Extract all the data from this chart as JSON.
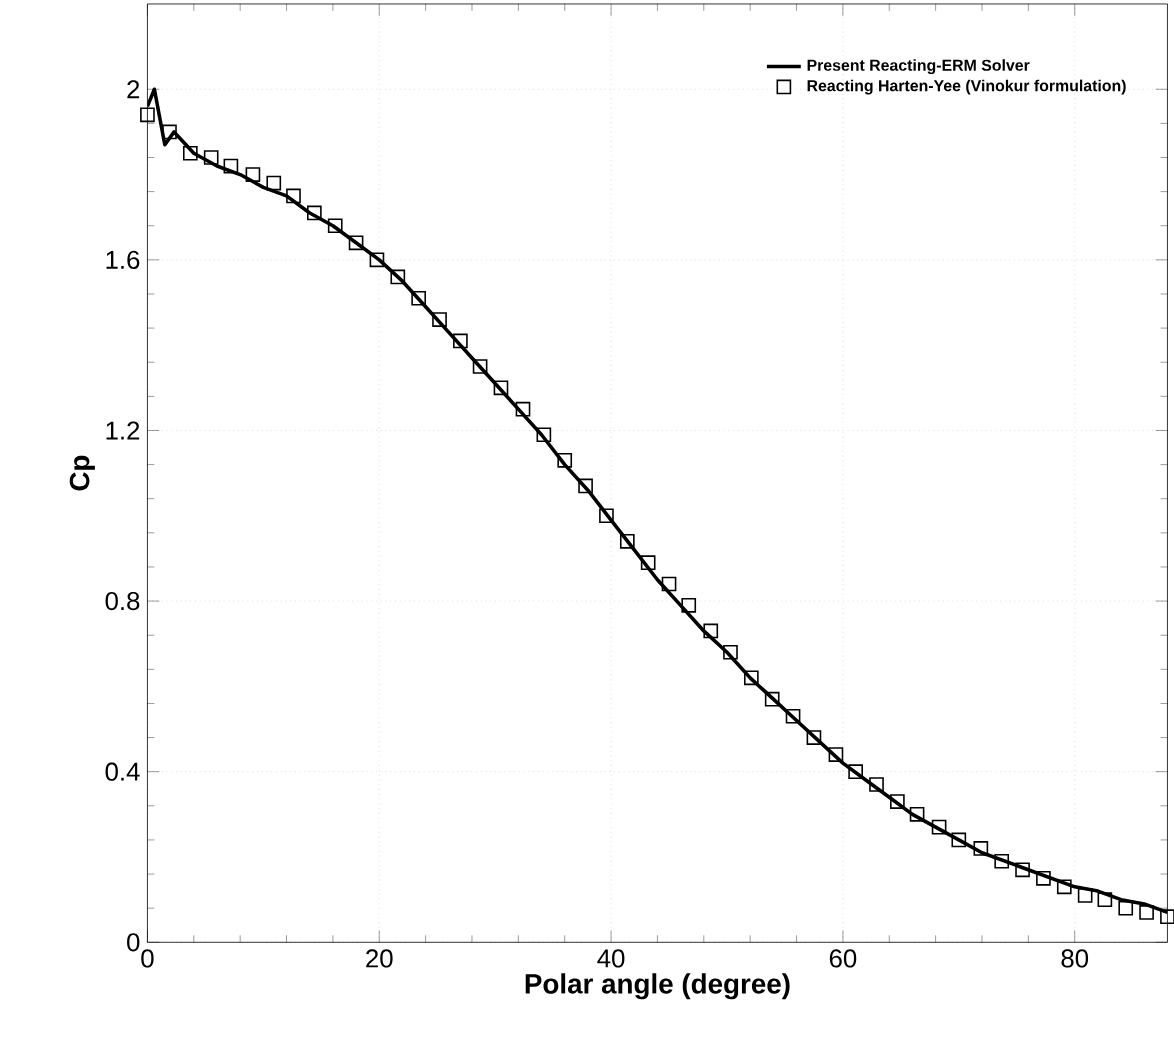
{
  "chart_data": {
    "type": "line",
    "xlabel": "Polar angle (degree)",
    "ylabel": "Cp",
    "xlim": [
      0,
      88
    ],
    "ylim": [
      0,
      2.2
    ],
    "xticks": [
      0,
      20,
      40,
      60,
      80
    ],
    "yticks": [
      0,
      0.4,
      0.8,
      1.2,
      1.6,
      2
    ],
    "grid": true,
    "legend": "top right",
    "series": [
      {
        "name": "Present Reacting-ERM Solver",
        "type": "line",
        "marker": "none",
        "line_style": "solid",
        "color": "#000000",
        "x": [
          0,
          0.6,
          1.5,
          2.3,
          4,
          6,
          8,
          10,
          12,
          14,
          16,
          18,
          20,
          22,
          24,
          26,
          28,
          30,
          32,
          34,
          36,
          38,
          40,
          42,
          44,
          46,
          48,
          50,
          52,
          54,
          56,
          58,
          60,
          62,
          64,
          66,
          68,
          70,
          72,
          74,
          76,
          78,
          80,
          82,
          84,
          86,
          88
        ],
        "values": [
          1.96,
          2.0,
          1.87,
          1.9,
          1.85,
          1.82,
          1.8,
          1.77,
          1.75,
          1.71,
          1.68,
          1.64,
          1.6,
          1.55,
          1.49,
          1.43,
          1.37,
          1.31,
          1.25,
          1.19,
          1.12,
          1.06,
          0.99,
          0.92,
          0.85,
          0.79,
          0.73,
          0.68,
          0.62,
          0.57,
          0.52,
          0.47,
          0.42,
          0.38,
          0.34,
          0.3,
          0.27,
          0.24,
          0.21,
          0.19,
          0.17,
          0.15,
          0.13,
          0.12,
          0.1,
          0.09,
          0.07
        ]
      },
      {
        "name": "Reacting Harten-Yee (Vinokur formulation)",
        "type": "scatter",
        "marker": "square",
        "color": "#000000",
        "x": [
          0,
          1.9,
          3.7,
          5.5,
          7.2,
          9.1,
          10.9,
          12.6,
          14.4,
          16.2,
          18,
          19.8,
          21.6,
          23.4,
          25.2,
          27,
          28.7,
          30.5,
          32.4,
          34.2,
          36,
          37.8,
          39.6,
          41.4,
          43.2,
          45,
          46.7,
          48.6,
          50.3,
          52.1,
          53.9,
          55.7,
          57.5,
          59.4,
          61.1,
          62.9,
          64.7,
          66.4,
          68.3,
          70,
          71.9,
          73.7,
          75.5,
          77.3,
          79.1,
          80.9,
          82.6,
          84.4,
          86.2,
          88
        ],
        "values": [
          1.94,
          1.9,
          1.85,
          1.84,
          1.82,
          1.8,
          1.78,
          1.75,
          1.71,
          1.68,
          1.64,
          1.6,
          1.56,
          1.51,
          1.46,
          1.41,
          1.35,
          1.3,
          1.25,
          1.19,
          1.13,
          1.07,
          1.0,
          0.94,
          0.89,
          0.84,
          0.79,
          0.73,
          0.68,
          0.62,
          0.57,
          0.53,
          0.48,
          0.44,
          0.4,
          0.37,
          0.33,
          0.3,
          0.27,
          0.24,
          0.22,
          0.19,
          0.17,
          0.15,
          0.13,
          0.11,
          0.1,
          0.08,
          0.07,
          0.06
        ]
      }
    ]
  }
}
